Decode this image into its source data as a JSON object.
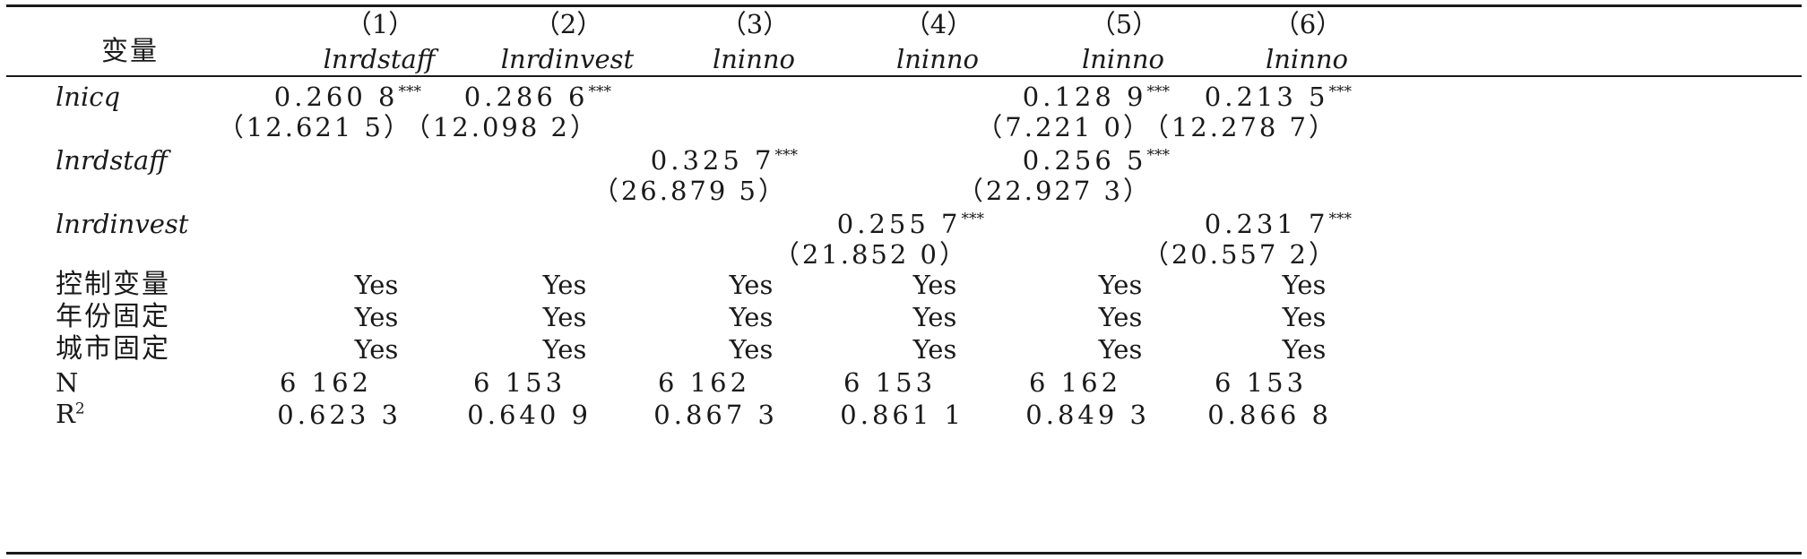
{
  "table": {
    "header": {
      "variable_label": "变量",
      "columns": [
        {
          "number": "（1）",
          "dep_var": "lnrdstaff"
        },
        {
          "number": "（2）",
          "dep_var": "lnrdinvest"
        },
        {
          "number": "（3）",
          "dep_var": "lninno"
        },
        {
          "number": "（4）",
          "dep_var": "lninno"
        },
        {
          "number": "（5）",
          "dep_var": "lninno"
        },
        {
          "number": "（6）",
          "dep_var": "lninno"
        }
      ]
    },
    "rows": [
      {
        "label": "lnicq",
        "coef": [
          "0.260 8",
          "0.286 6",
          "",
          "",
          "0.128 9",
          "0.213 5"
        ],
        "stars": [
          "***",
          "***",
          "",
          "",
          "***",
          "***"
        ],
        "t": [
          "（12.621 5）",
          "（12.098 2）",
          "",
          "",
          "（7.221 0）",
          "（12.278 7）"
        ]
      },
      {
        "label": "lnrdstaff",
        "coef": [
          "",
          "",
          "0.325 7",
          "",
          "0.256 5",
          ""
        ],
        "stars": [
          "",
          "",
          "***",
          "",
          "***",
          ""
        ],
        "t": [
          "",
          "",
          "（26.879 5）",
          "",
          "（22.927 3）",
          ""
        ]
      },
      {
        "label": "lnrdinvest",
        "coef": [
          "",
          "",
          "",
          "0.255 7",
          "",
          "0.231 7"
        ],
        "stars": [
          "",
          "",
          "",
          "***",
          "",
          "***"
        ],
        "t": [
          "",
          "",
          "",
          "（21.852 0）",
          "",
          "（20.557 2）"
        ]
      }
    ],
    "fixed_rows": [
      {
        "label": "控制变量",
        "values": [
          "Yes",
          "Yes",
          "Yes",
          "Yes",
          "Yes",
          "Yes"
        ]
      },
      {
        "label": "年份固定",
        "values": [
          "Yes",
          "Yes",
          "Yes",
          "Yes",
          "Yes",
          "Yes"
        ]
      },
      {
        "label": "城市固定",
        "values": [
          "Yes",
          "Yes",
          "Yes",
          "Yes",
          "Yes",
          "Yes"
        ]
      }
    ],
    "n_row": {
      "label": "N",
      "values": [
        "6 162",
        "6 153",
        "6 162",
        "6 153",
        "6 162",
        "6 153"
      ]
    },
    "r2_row": {
      "label_base": "R",
      "label_sup": "2",
      "values": [
        "0.623 3",
        "0.640 9",
        "0.867 3",
        "0.861 1",
        "0.849 3",
        "0.866 8"
      ]
    }
  }
}
